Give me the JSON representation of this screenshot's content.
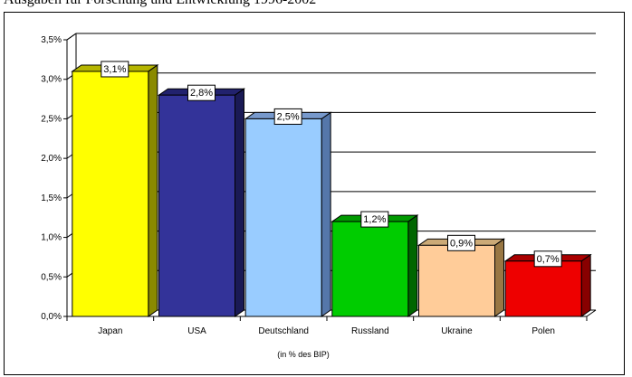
{
  "chart_data": {
    "type": "bar",
    "title": "Ausgaben für Forschung und Entwicklung 1996-2002",
    "xlabel": "(in % des BIP)",
    "ylabel": "",
    "ylim": [
      0,
      3.5
    ],
    "yticks": [
      "0,0%",
      "0,5%",
      "1,0%",
      "1,5%",
      "2,0%",
      "2,5%",
      "3,0%",
      "3,5%"
    ],
    "grid": true,
    "legend": "none",
    "categories": [
      "Japan",
      "USA",
      "Deutschland",
      "Russland",
      "Ukraine",
      "Polen"
    ],
    "values": [
      3.1,
      2.8,
      2.5,
      1.2,
      0.9,
      0.7
    ],
    "data_labels": [
      "3,1%",
      "2,8%",
      "2,5%",
      "1,2%",
      "0,9%",
      "0,7%"
    ],
    "colors": [
      "#ffff00",
      "#333399",
      "#99ccff",
      "#00cc00",
      "#ffcc99",
      "#ee0000"
    ],
    "side_colors": [
      "#8a8a00",
      "#1a1a55",
      "#5577aa",
      "#006600",
      "#997744",
      "#880000"
    ],
    "top_colors": [
      "#b5b500",
      "#22226e",
      "#7799cc",
      "#009900",
      "#ccaa77",
      "#aa0000"
    ]
  }
}
